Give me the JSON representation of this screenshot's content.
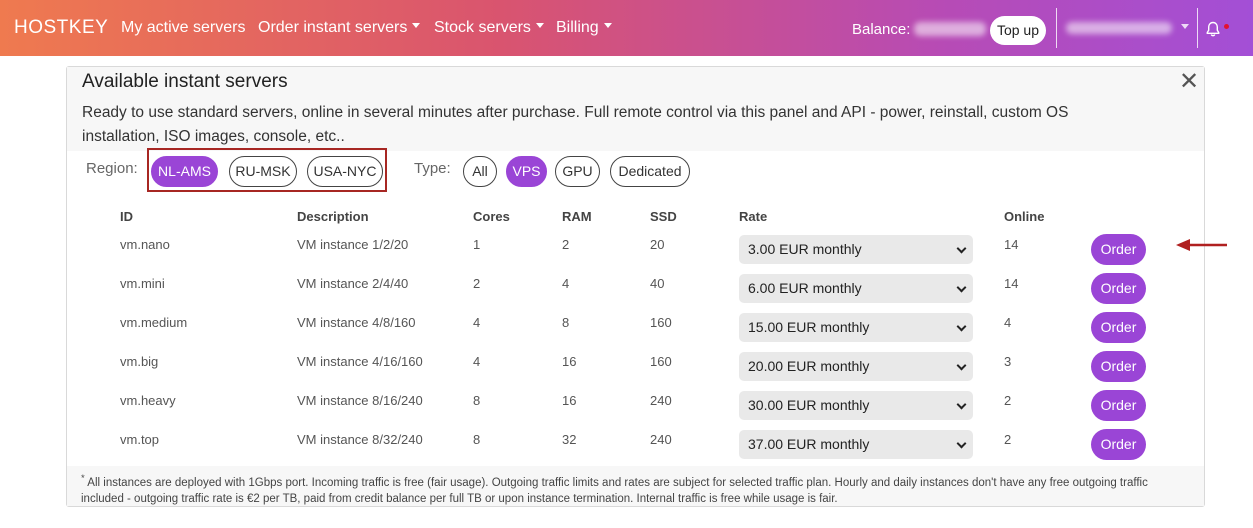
{
  "nav": {
    "brand": "HOSTKEY",
    "items": [
      {
        "label": "My active servers",
        "dropdown": false
      },
      {
        "label": "Order instant servers",
        "dropdown": true
      },
      {
        "label": "Stock servers",
        "dropdown": true
      },
      {
        "label": "Billing",
        "dropdown": true
      }
    ],
    "balance_label": "Balance:",
    "topup_label": "Top up"
  },
  "card": {
    "title": "Available instant servers",
    "description": "Ready to use standard servers, online in several minutes after purchase. Full remote control via this panel and API - power, reinstall, custom OS installation, ISO images, console, etc..",
    "region_label": "Region:",
    "regions": [
      {
        "label": "NL-AMS",
        "active": true
      },
      {
        "label": "RU-MSK",
        "active": false
      },
      {
        "label": "USA-NYC",
        "active": false
      }
    ],
    "type_label": "Type:",
    "types": [
      {
        "label": "All",
        "active": false
      },
      {
        "label": "VPS",
        "active": true
      },
      {
        "label": "GPU",
        "active": false
      },
      {
        "label": "Dedicated",
        "active": false
      }
    ],
    "columns": [
      "ID",
      "Description",
      "Cores",
      "RAM",
      "SSD",
      "Rate",
      "Online"
    ],
    "order_label": "Order",
    "rows": [
      {
        "id": "vm.nano",
        "description": "VM instance 1/2/20",
        "cores": "1",
        "ram": "2",
        "ssd": "20",
        "rate": "3.00 EUR monthly",
        "online": "14"
      },
      {
        "id": "vm.mini",
        "description": "VM instance 2/4/40",
        "cores": "2",
        "ram": "4",
        "ssd": "40",
        "rate": "6.00 EUR monthly",
        "online": "14"
      },
      {
        "id": "vm.medium",
        "description": "VM instance 4/8/160",
        "cores": "4",
        "ram": "8",
        "ssd": "160",
        "rate": "15.00 EUR monthly",
        "online": "4"
      },
      {
        "id": "vm.big",
        "description": "VM instance 4/16/160",
        "cores": "4",
        "ram": "16",
        "ssd": "160",
        "rate": "20.00 EUR monthly",
        "online": "3"
      },
      {
        "id": "vm.heavy",
        "description": "VM instance 8/16/240",
        "cores": "8",
        "ram": "16",
        "ssd": "240",
        "rate": "30.00 EUR monthly",
        "online": "2"
      },
      {
        "id": "vm.top",
        "description": "VM instance 8/32/240",
        "cores": "8",
        "ram": "32",
        "ssd": "240",
        "rate": "37.00 EUR monthly",
        "online": "2"
      }
    ],
    "footnote_mark": "*",
    "footnote": "All instances are deployed with 1Gbps port. Incoming traffic is free (fair usage). Outgoing traffic limits and rates are subject for selected traffic plan. Hourly and daily instances don't have any free outgoing traffic included - outgoing traffic rate is €2 per TB, paid from credit balance per full TB or upon instance termination. Internal traffic is free while usage is fair."
  },
  "colors": {
    "accent": "#9a45d6",
    "highlight_box": "#a72723",
    "nav_gradient_start": "#ef7a4f",
    "nav_gradient_end": "#a34fd6"
  },
  "icons": [
    "close-icon",
    "bell-icon",
    "chevron-down-icon",
    "arrow-left-icon"
  ]
}
